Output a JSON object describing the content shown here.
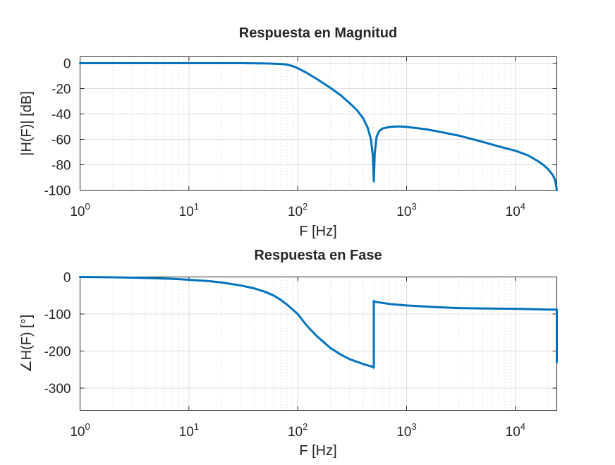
{
  "chart_data": [
    {
      "type": "line",
      "title": "Respuesta en Magnitud",
      "xlabel": "F [Hz]",
      "ylabel": "|H(F)| [dB]",
      "xscale": "log",
      "xlim": [
        1,
        24000
      ],
      "ylim": [
        -100,
        5
      ],
      "xtick_labels": [
        {
          "base": "10",
          "exp": "0"
        },
        {
          "base": "10",
          "exp": "1"
        },
        {
          "base": "10",
          "exp": "2"
        },
        {
          "base": "10",
          "exp": "3"
        },
        {
          "base": "10",
          "exp": "4"
        }
      ],
      "yticks": [
        0,
        -20,
        -40,
        -60,
        -80,
        -100
      ],
      "ytick_labels": [
        "0",
        "-20",
        "-40",
        "-60",
        "-80",
        "-100"
      ],
      "grid": true,
      "color": "#0072BD",
      "series": [
        {
          "x": [
            1,
            10,
            30,
            50,
            70,
            80,
            90,
            100,
            120,
            150,
            200,
            250,
            300,
            350,
            400,
            440,
            470,
            490,
            500,
            510,
            530,
            560,
            600,
            700,
            850,
            1000,
            1500,
            2000,
            3000,
            5000,
            7000,
            10000,
            13000,
            16000,
            18000,
            20000,
            22000,
            23000,
            23500,
            24000
          ],
          "y": [
            0,
            0,
            0,
            -0.2,
            -0.6,
            -1.2,
            -2.3,
            -4,
            -7.5,
            -12.5,
            -19.5,
            -25.5,
            -31.5,
            -37,
            -43.5,
            -51,
            -60,
            -73,
            -93,
            -71,
            -58,
            -53.5,
            -51.5,
            -50.2,
            -49.8,
            -50.2,
            -52,
            -54,
            -57,
            -62,
            -65.5,
            -69,
            -72.5,
            -77,
            -80,
            -83.5,
            -88,
            -91.5,
            -95,
            -100
          ]
        }
      ]
    },
    {
      "type": "line",
      "title": "Respuesta en Fase",
      "xlabel": "F [Hz]",
      "ylabel": "∠H(F) [°]",
      "xscale": "log",
      "xlim": [
        1,
        24000
      ],
      "ylim": [
        -360,
        0
      ],
      "xtick_labels": [
        {
          "base": "10",
          "exp": "0"
        },
        {
          "base": "10",
          "exp": "1"
        },
        {
          "base": "10",
          "exp": "2"
        },
        {
          "base": "10",
          "exp": "3"
        },
        {
          "base": "10",
          "exp": "4"
        }
      ],
      "yticks": [
        0,
        -100,
        -200,
        -300
      ],
      "ytick_labels": [
        "0",
        "-100",
        "-200",
        "-300"
      ],
      "grid": true,
      "color": "#0072BD",
      "series": [
        {
          "x": [
            1,
            2,
            3,
            5,
            7,
            10,
            15,
            20,
            30,
            40,
            50,
            60,
            70,
            80,
            90,
            100,
            120,
            150,
            200,
            250,
            300,
            400,
            480,
            500,
            500,
            510,
            600,
            700,
            1000,
            2000,
            3000,
            5000,
            10000,
            20000,
            24000,
            24000
          ],
          "y": [
            0,
            -1,
            -2,
            -3.5,
            -5,
            -7.5,
            -11,
            -15,
            -23,
            -31,
            -40,
            -50,
            -62,
            -75,
            -88,
            -100,
            -130,
            -160,
            -192,
            -210,
            -222,
            -235,
            -242,
            -245,
            -65,
            -67,
            -70,
            -73,
            -77,
            -82,
            -84,
            -85,
            -86,
            -88,
            -88,
            -230
          ]
        }
      ]
    }
  ]
}
